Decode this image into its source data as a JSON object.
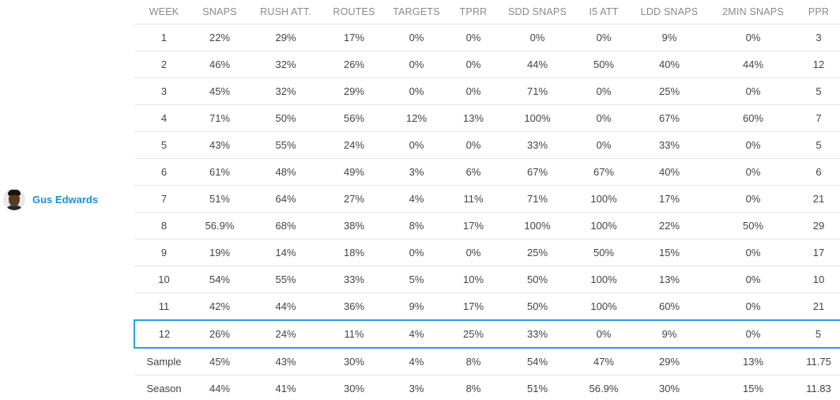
{
  "player": {
    "name": "Gus Edwards",
    "avatar_icon": "player-headshot",
    "name_color": "#1a8fe0"
  },
  "highlight_color": "#2a9fe6",
  "columns": [
    "WEEK",
    "SNAPS",
    "RUSH ATT.",
    "ROUTES",
    "TARGETS",
    "TPRR",
    "SDD SNAPS",
    "I5 ATT",
    "LDD SNAPS",
    "2MIN SNAPS",
    "PPR"
  ],
  "rows": [
    [
      "1",
      "22%",
      "29%",
      "17%",
      "0%",
      "0%",
      "0%",
      "0%",
      "9%",
      "0%",
      "3"
    ],
    [
      "2",
      "46%",
      "32%",
      "26%",
      "0%",
      "0%",
      "44%",
      "50%",
      "40%",
      "44%",
      "12"
    ],
    [
      "3",
      "45%",
      "32%",
      "29%",
      "0%",
      "0%",
      "71%",
      "0%",
      "25%",
      "0%",
      "5"
    ],
    [
      "4",
      "71%",
      "50%",
      "56%",
      "12%",
      "13%",
      "100%",
      "0%",
      "67%",
      "60%",
      "7"
    ],
    [
      "5",
      "43%",
      "55%",
      "24%",
      "0%",
      "0%",
      "33%",
      "0%",
      "33%",
      "0%",
      "5"
    ],
    [
      "6",
      "61%",
      "48%",
      "49%",
      "3%",
      "6%",
      "67%",
      "67%",
      "40%",
      "0%",
      "6"
    ],
    [
      "7",
      "51%",
      "64%",
      "27%",
      "4%",
      "11%",
      "71%",
      "100%",
      "17%",
      "0%",
      "21"
    ],
    [
      "8",
      "56.9%",
      "68%",
      "38%",
      "8%",
      "17%",
      "100%",
      "100%",
      "22%",
      "50%",
      "29"
    ],
    [
      "9",
      "19%",
      "14%",
      "18%",
      "0%",
      "0%",
      "25%",
      "50%",
      "15%",
      "0%",
      "17"
    ],
    [
      "10",
      "54%",
      "55%",
      "33%",
      "5%",
      "10%",
      "50%",
      "100%",
      "13%",
      "0%",
      "10"
    ],
    [
      "11",
      "42%",
      "44%",
      "36%",
      "9%",
      "17%",
      "50%",
      "100%",
      "60%",
      "0%",
      "21"
    ],
    [
      "12",
      "26%",
      "24%",
      "11%",
      "4%",
      "25%",
      "33%",
      "0%",
      "9%",
      "0%",
      "5"
    ],
    [
      "Sample",
      "45%",
      "43%",
      "30%",
      "4%",
      "8%",
      "54%",
      "47%",
      "29%",
      "13%",
      "11.75"
    ],
    [
      "Season",
      "44%",
      "41%",
      "30%",
      "3%",
      "8%",
      "51%",
      "56.9%",
      "30%",
      "15%",
      "11.83"
    ]
  ],
  "highlighted_row": "12"
}
